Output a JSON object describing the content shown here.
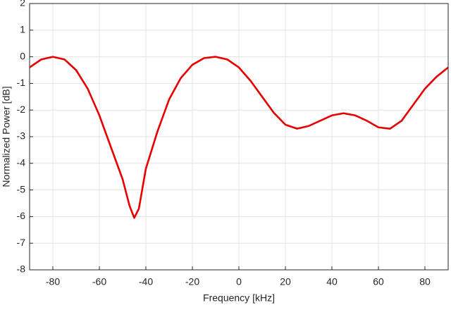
{
  "chart_data": {
    "type": "line",
    "x_label": "Frequency [kHz]",
    "y_label": "Normalized Power [dB]",
    "x": [
      -90,
      -85,
      -80,
      -75,
      -70,
      -65,
      -60,
      -55,
      -50,
      -47,
      -45,
      -43,
      -40,
      -35,
      -30,
      -25,
      -20,
      -15,
      -10,
      -5,
      0,
      5,
      10,
      15,
      20,
      25,
      30,
      35,
      40,
      45,
      50,
      55,
      60,
      65,
      70,
      75,
      80,
      85,
      90
    ],
    "series": [
      {
        "color": "#e60000",
        "values": [
          -0.4,
          -0.1,
          0,
          -0.1,
          -0.5,
          -1.2,
          -2.2,
          -3.4,
          -4.6,
          -5.6,
          -6.05,
          -5.7,
          -4.2,
          -2.8,
          -1.6,
          -0.8,
          -0.3,
          -0.05,
          0,
          -0.1,
          -0.4,
          -0.9,
          -1.5,
          -2.1,
          -2.55,
          -2.7,
          -2.6,
          -2.4,
          -2.2,
          -2.12,
          -2.2,
          -2.4,
          -2.65,
          -2.7,
          -2.4,
          -1.8,
          -1.2,
          -0.75,
          -0.4
        ]
      }
    ],
    "xlim": [
      -90,
      90
    ],
    "xticks": [
      -80,
      -60,
      -40,
      -20,
      0,
      20,
      40,
      60,
      80
    ],
    "ylim": [
      -8,
      2
    ],
    "yticks": [
      -8,
      -7,
      -6,
      -5,
      -4,
      -3,
      -2,
      -1,
      0,
      1,
      2
    ],
    "grid": true
  }
}
